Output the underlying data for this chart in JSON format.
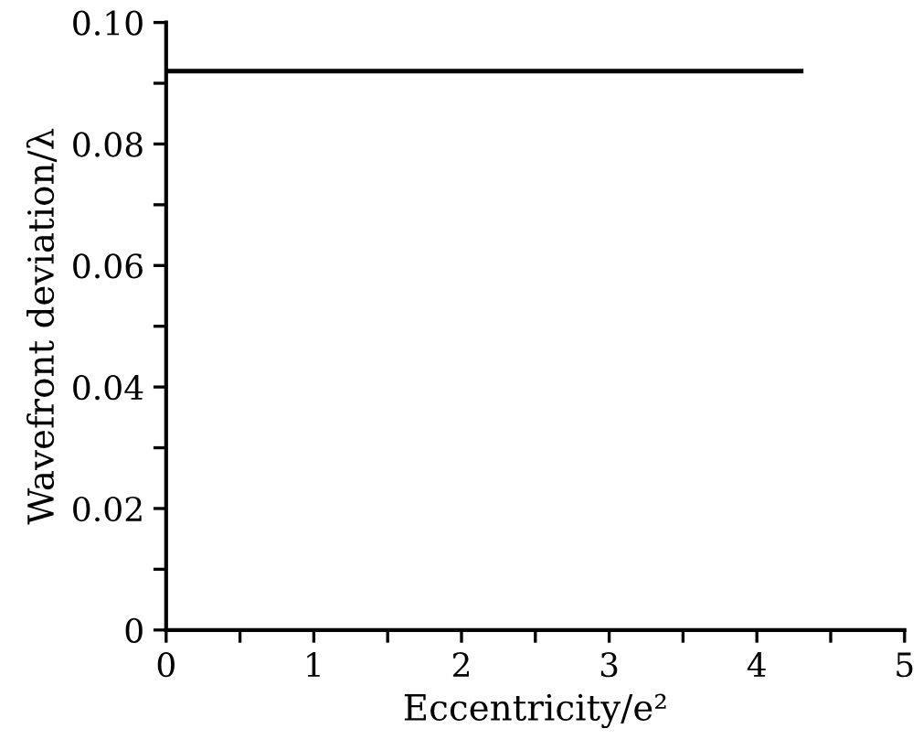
{
  "chart_data": {
    "type": "line",
    "xlabel": "Eccentricity/e²",
    "ylabel": "Wavefront deviation/λ",
    "x": [
      0,
      4.3
    ],
    "series": [
      {
        "color": "#000000",
        "values": [
          0.092,
          0.092
        ]
      }
    ],
    "xlim": [
      0,
      5
    ],
    "ylim": [
      0,
      0.1
    ],
    "xticks": [
      0,
      {
        "value": 0.5,
        "label": null
      },
      1,
      {
        "value": 1.5,
        "label": null
      },
      2,
      {
        "value": 2.5,
        "label": null
      },
      3,
      {
        "value": 3.5,
        "label": null
      },
      4,
      {
        "value": 4.5,
        "label": null
      },
      5
    ],
    "yticks": [
      0,
      {
        "value": 0.01,
        "label": null
      },
      0.02,
      {
        "value": 0.03,
        "label": null
      },
      0.04,
      {
        "value": 0.05,
        "label": null
      },
      0.06,
      {
        "value": 0.07,
        "label": null
      },
      0.08,
      {
        "value": 0.09,
        "label": null
      },
      {
        "value": 0.1,
        "label": "0.10"
      }
    ],
    "grid": false,
    "marker": "none",
    "line_style": "solid"
  }
}
